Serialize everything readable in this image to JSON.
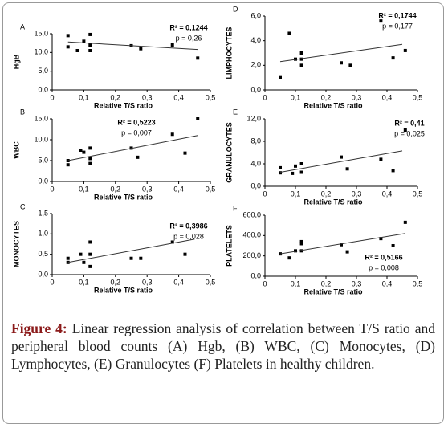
{
  "chart_data": [
    {
      "type": "scatter",
      "panel": "A",
      "ylabel": "HgB",
      "xlabel": "Relative T/S ratio",
      "r2": "R² = 0,1244",
      "p": "p = 0,26",
      "color": "#000000",
      "x": [
        0.05,
        0.05,
        0.08,
        0.1,
        0.12,
        0.12,
        0.12,
        0.25,
        0.28,
        0.38,
        0.46
      ],
      "values": [
        14.5,
        11.5,
        10.5,
        13,
        14.8,
        12,
        10.5,
        11.8,
        11,
        12,
        8.5
      ],
      "trend": {
        "x": [
          0.05,
          0.46
        ],
        "y": [
          12.8,
          10.8
        ]
      },
      "xlim": [
        0,
        0.5
      ],
      "xticks": [
        {
          "value": 0,
          "label": "0"
        },
        {
          "value": 0.1,
          "label": "0,1"
        },
        {
          "value": 0.2,
          "label": "0,2"
        },
        {
          "value": 0.3,
          "label": "0,3"
        },
        {
          "value": 0.4,
          "label": "0,4"
        },
        {
          "value": 0.5,
          "label": "0,5"
        }
      ],
      "ylim": [
        0,
        15
      ],
      "yticks": [
        {
          "value": 0,
          "label": "0,0"
        },
        {
          "value": 5,
          "label": "5,0"
        },
        {
          "value": 10,
          "label": "10,0"
        },
        {
          "value": 15,
          "label": "15,0"
        }
      ]
    },
    {
      "type": "scatter",
      "panel": "B",
      "ylabel": "WBC",
      "xlabel": "Relative T/S ratio",
      "r2": "R² = 0,5223",
      "p": "p = 0,007",
      "color": "#000000",
      "x": [
        0.05,
        0.05,
        0.09,
        0.1,
        0.12,
        0.12,
        0.12,
        0.25,
        0.27,
        0.38,
        0.42,
        0.46
      ],
      "values": [
        5,
        4,
        7.5,
        7,
        8,
        5.5,
        4.3,
        8,
        5.8,
        11.3,
        6.8,
        15
      ],
      "trend": {
        "x": [
          0.05,
          0.46
        ],
        "y": [
          5,
          11
        ]
      },
      "xlim": [
        0,
        0.5
      ],
      "xticks": [
        {
          "value": 0,
          "label": "0"
        },
        {
          "value": 0.1,
          "label": "0,1"
        },
        {
          "value": 0.2,
          "label": "0,2"
        },
        {
          "value": 0.3,
          "label": "0,3"
        },
        {
          "value": 0.4,
          "label": "0,4"
        },
        {
          "value": 0.5,
          "label": "0,5"
        }
      ],
      "ylim": [
        0,
        15
      ],
      "yticks": [
        {
          "value": 0,
          "label": "0,0"
        },
        {
          "value": 5,
          "label": "5,0"
        },
        {
          "value": 10,
          "label": "10,0"
        },
        {
          "value": 15,
          "label": "15,0"
        }
      ]
    },
    {
      "type": "scatter",
      "panel": "C",
      "ylabel": "MONOCYTES",
      "xlabel": "Relative T/S ratio",
      "r2": "R² = 0,3986",
      "p": "p = 0,028",
      "color": "#000000",
      "x": [
        0.05,
        0.05,
        0.09,
        0.1,
        0.12,
        0.12,
        0.12,
        0.25,
        0.28,
        0.38,
        0.42
      ],
      "values": [
        0.4,
        0.3,
        0.5,
        0.3,
        0.8,
        0.5,
        0.2,
        0.4,
        0.4,
        0.8,
        0.5
      ],
      "trend": {
        "x": [
          0.05,
          0.45
        ],
        "y": [
          0.3,
          0.87
        ]
      },
      "xlim": [
        0,
        0.5
      ],
      "xticks": [
        {
          "value": 0,
          "label": "0"
        },
        {
          "value": 0.1,
          "label": "0,1"
        },
        {
          "value": 0.2,
          "label": "0,2"
        },
        {
          "value": 0.3,
          "label": "0,3"
        },
        {
          "value": 0.4,
          "label": "0,4"
        },
        {
          "value": 0.5,
          "label": "0,5"
        }
      ],
      "ylim": [
        0,
        1.5
      ],
      "yticks": [
        {
          "value": 0,
          "label": "0,0"
        },
        {
          "value": 0.5,
          "label": "0,5"
        },
        {
          "value": 1,
          "label": "1,0"
        },
        {
          "value": 1.5,
          "label": "1,5"
        }
      ]
    },
    {
      "type": "scatter",
      "panel": "D",
      "ylabel": "LIMPHOCYTES",
      "xlabel": "Relative T/S ratio",
      "r2": "R² = 0,1744",
      "p": "p = 0,177",
      "color": "#000000",
      "x": [
        0.05,
        0.08,
        0.1,
        0.12,
        0.12,
        0.12,
        0.25,
        0.28,
        0.38,
        0.42,
        0.46
      ],
      "values": [
        1,
        4.6,
        2.5,
        3,
        2.5,
        2,
        2.2,
        2,
        5.6,
        2.6,
        3.2
      ],
      "trend": {
        "x": [
          0.05,
          0.45
        ],
        "y": [
          2.3,
          3.7
        ]
      },
      "xlim": [
        0,
        0.5
      ],
      "xticks": [
        {
          "value": 0,
          "label": "0"
        },
        {
          "value": 0.1,
          "label": "0,1"
        },
        {
          "value": 0.2,
          "label": "0,2"
        },
        {
          "value": 0.3,
          "label": "0,3"
        },
        {
          "value": 0.4,
          "label": "0,4"
        },
        {
          "value": 0.5,
          "label": "0,5"
        }
      ],
      "ylim": [
        0,
        6
      ],
      "yticks": [
        {
          "value": 0,
          "label": "0,0"
        },
        {
          "value": 2,
          "label": "2,0"
        },
        {
          "value": 4,
          "label": "4,0"
        },
        {
          "value": 6,
          "label": "6,0"
        }
      ]
    },
    {
      "type": "scatter",
      "panel": "E",
      "ylabel": "GRANULOCYTES",
      "xlabel": "Relative T/S ratio",
      "r2": "R² = 0,41",
      "p": "p = 0,025",
      "color": "#000000",
      "x": [
        0.05,
        0.05,
        0.09,
        0.1,
        0.12,
        0.12,
        0.25,
        0.27,
        0.38,
        0.42,
        0.46
      ],
      "values": [
        3.3,
        2.4,
        2.3,
        3.6,
        4,
        2.5,
        5.2,
        3.1,
        4.8,
        2.8,
        10
      ],
      "trend": {
        "x": [
          0.05,
          0.45
        ],
        "y": [
          2.5,
          6.3
        ]
      },
      "xlim": [
        0,
        0.5
      ],
      "xticks": [
        {
          "value": 0,
          "label": "0"
        },
        {
          "value": 0.1,
          "label": "0,1"
        },
        {
          "value": 0.2,
          "label": "0,2"
        },
        {
          "value": 0.3,
          "label": "0,3"
        },
        {
          "value": 0.4,
          "label": "0,4"
        },
        {
          "value": 0.5,
          "label": "0,5"
        }
      ],
      "ylim": [
        0,
        12
      ],
      "yticks": [
        {
          "value": 0,
          "label": "0,0"
        },
        {
          "value": 4,
          "label": "4,0"
        },
        {
          "value": 8,
          "label": "8,0"
        },
        {
          "value": 12,
          "label": "12,0"
        }
      ]
    },
    {
      "type": "scatter",
      "panel": "F",
      "ylabel": "PLATELETS",
      "xlabel": "Relative T/S ratio",
      "r2": "R² = 0,5166",
      "p": "p = 0,008",
      "color": "#000000",
      "x": [
        0.05,
        0.08,
        0.1,
        0.12,
        0.12,
        0.12,
        0.25,
        0.27,
        0.38,
        0.42,
        0.46
      ],
      "values": [
        220,
        180,
        250,
        340,
        320,
        250,
        310,
        240,
        370,
        300,
        530
      ],
      "trend": {
        "x": [
          0.05,
          0.46
        ],
        "y": [
          220,
          420
        ]
      },
      "xlim": [
        0,
        0.5
      ],
      "xticks": [
        {
          "value": 0,
          "label": "0"
        },
        {
          "value": 0.1,
          "label": "0,1"
        },
        {
          "value": 0.2,
          "label": "0,2"
        },
        {
          "value": 0.3,
          "label": "0,3"
        },
        {
          "value": 0.4,
          "label": "0,4"
        },
        {
          "value": 0.5,
          "label": "0,5"
        }
      ],
      "ylim": [
        0,
        600
      ],
      "yticks": [
        {
          "value": 0,
          "label": "0,0"
        },
        {
          "value": 200,
          "label": "200,0"
        },
        {
          "value": 400,
          "label": "400,0"
        },
        {
          "value": 600,
          "label": "600,0"
        }
      ]
    }
  ],
  "caption": {
    "label": "Figure 4:",
    "text": "Linear regression analysis of correlation between T/S ratio and peripheral blood counts (A) Hgb, (B) WBC, (C) Monocytes, (D) Lymphocytes, (E) Granulocytes (F) Platelets in healthy children."
  }
}
